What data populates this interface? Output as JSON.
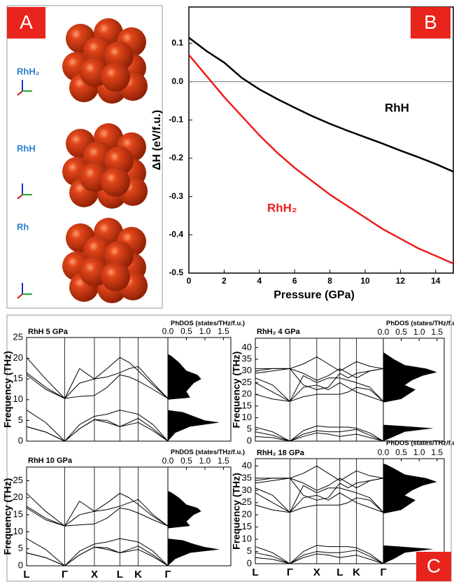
{
  "panel_labels": [
    "A",
    "B",
    "C"
  ],
  "panel_a": {
    "structures": [
      "RhH₂",
      "RhH",
      "Rh"
    ]
  },
  "chart_data": [
    {
      "type": "line",
      "xlabel": "Pressure (GPa)",
      "ylabel": "ΔH (eV/f.u.)",
      "xlim": [
        0,
        15
      ],
      "ylim": [
        -0.5,
        0.195
      ],
      "xticks": [
        0,
        2,
        4,
        6,
        8,
        10,
        12,
        14
      ],
      "yticks": [
        0.1,
        {
          "value": 0,
          "label": "0.0"
        },
        -0.1,
        -0.2,
        -0.3,
        -0.4,
        -0.5
      ],
      "zero_line": true,
      "x": [
        0,
        1,
        2,
        3,
        4,
        5,
        6,
        7,
        8,
        9,
        10,
        11,
        12,
        13,
        14,
        15
      ],
      "series": [
        {
          "name": "RhH",
          "color": "#000000",
          "values": [
            0.115,
            0.08,
            0.05,
            0.01,
            -0.02,
            -0.045,
            -0.068,
            -0.09,
            -0.11,
            -0.128,
            -0.145,
            -0.162,
            -0.18,
            -0.197,
            -0.215,
            -0.235
          ]
        },
        {
          "name": "RhH₂",
          "color": "#ee1c1c",
          "values": [
            0.07,
            0.015,
            -0.04,
            -0.09,
            -0.14,
            -0.185,
            -0.225,
            -0.26,
            -0.295,
            -0.325,
            -0.355,
            -0.385,
            -0.41,
            -0.435,
            -0.455,
            -0.475
          ]
        }
      ]
    },
    {
      "type": "phonon",
      "title": "RhH 5 GPa",
      "ylabel": "Frequency (THz)",
      "ylim": [
        0,
        25
      ],
      "yticks": [
        0,
        5,
        10,
        15,
        20,
        25
      ],
      "xlim": [
        0,
        1
      ],
      "symmetry_points": [
        0.27,
        0.48,
        0.66,
        0.79
      ],
      "x": [
        0,
        0.135,
        0.27,
        0.375,
        0.48,
        0.57,
        0.66,
        0.725,
        0.79,
        0.895,
        1.0
      ],
      "series": [
        {
          "values": [
            3.5,
            2.2,
            0,
            3,
            5.2,
            4.5,
            3.5,
            4,
            4.5,
            2.5,
            0
          ]
        },
        {
          "values": [
            3.5,
            2.2,
            0,
            3,
            5.2,
            5,
            3.5,
            4.5,
            5.5,
            3,
            0
          ]
        },
        {
          "values": [
            7.5,
            4.5,
            0,
            4,
            6,
            6.5,
            7.5,
            7,
            6.5,
            4,
            0
          ]
        },
        {
          "values": [
            16,
            12.5,
            10.3,
            10.8,
            11,
            13,
            16,
            15.5,
            14.5,
            12.5,
            10.3
          ]
        },
        {
          "values": [
            16.5,
            13,
            10.3,
            17.5,
            15,
            15.5,
            16.5,
            17.5,
            18,
            14,
            10.3
          ]
        },
        {
          "values": [
            20.2,
            15,
            10.3,
            14,
            15,
            17.5,
            20.2,
            19,
            17,
            13.5,
            10.3
          ]
        }
      ],
      "dos_title": "PhDOS (states/THz/f.u.)",
      "dos_xlim": [
        0,
        1.7
      ],
      "dos_xticks": [
        {
          "value": 0,
          "label": "0.0"
        },
        0.5,
        {
          "value": 1,
          "label": "1.0"
        },
        1.5
      ],
      "dos_y": [
        0,
        2,
        3.5,
        4.5,
        5,
        6,
        7,
        7.5,
        8,
        10,
        10.5,
        12,
        14,
        15,
        16,
        17,
        19,
        20.5,
        21
      ],
      "dos_values": [
        0,
        0.2,
        0.6,
        1.4,
        1.0,
        0.7,
        0.4,
        0,
        0,
        0,
        0.6,
        0.5,
        0.7,
        0.9,
        0.8,
        0.5,
        0.3,
        0.1,
        0
      ]
    },
    {
      "type": "phonon",
      "title": "RhH₂ 4 GPa",
      "ylabel": "Frequency (THz)",
      "ylim": [
        0,
        44
      ],
      "yticks": [
        0,
        5,
        10,
        15,
        20,
        25,
        30,
        35,
        40
      ],
      "xlim": [
        0,
        1
      ],
      "symmetry_points": [
        0.27,
        0.48,
        0.66,
        0.79
      ],
      "x": [
        0,
        0.135,
        0.27,
        0.375,
        0.48,
        0.57,
        0.66,
        0.725,
        0.79,
        0.895,
        1.0
      ],
      "series": [
        {
          "values": [
            2,
            1.5,
            0,
            2,
            3.5,
            3,
            2,
            2.5,
            3,
            1.5,
            0
          ]
        },
        {
          "values": [
            4,
            2.5,
            0,
            3,
            4.5,
            4,
            4,
            4.5,
            5,
            2.5,
            0
          ]
        },
        {
          "values": [
            6,
            4,
            0,
            4.5,
            6.5,
            6,
            6,
            6,
            5.5,
            3.5,
            0
          ]
        },
        {
          "values": [
            20,
            18,
            17,
            19,
            20,
            20,
            20,
            21,
            23,
            22,
            17
          ]
        },
        {
          "values": [
            25,
            21,
            17,
            23,
            24,
            22,
            25,
            23,
            21,
            19,
            17
          ]
        },
        {
          "values": [
            27,
            24,
            17,
            28,
            25,
            27,
            27,
            26,
            25,
            23,
            17
          ]
        },
        {
          "values": [
            30,
            31,
            31,
            33,
            36,
            33,
            30,
            32,
            34,
            32,
            31
          ]
        },
        {
          "values": [
            31,
            31,
            31,
            29,
            26,
            28,
            31,
            29,
            27,
            30,
            31
          ]
        },
        {
          "values": [
            29,
            30,
            31,
            24,
            22,
            23,
            29,
            27,
            29,
            30,
            31
          ]
        }
      ],
      "dos_title": "PhDOS (states/THz/f.u.)",
      "dos_xlim": [
        0,
        1.7
      ],
      "dos_xticks": [
        {
          "value": 0,
          "label": "0.0"
        },
        0.5,
        {
          "value": 1,
          "label": "1.0"
        },
        1.5
      ],
      "dos_y": [
        0,
        2,
        4,
        5.5,
        6.5,
        7,
        16.5,
        18,
        20,
        22,
        24,
        26,
        28,
        29.5,
        31,
        32.5,
        35,
        37,
        38
      ],
      "dos_values": [
        0,
        0.3,
        0.6,
        1.4,
        0.5,
        0,
        0,
        0.5,
        0.7,
        0.9,
        0.6,
        0.8,
        1.1,
        1.5,
        1.2,
        0.6,
        0.3,
        0.1,
        0
      ]
    },
    {
      "type": "phonon",
      "title": "RhH 10 GPa",
      "ylabel": "Frequency (THz)",
      "ylim": [
        0,
        29
      ],
      "yticks": [
        0,
        5,
        10,
        15,
        20,
        25
      ],
      "xlim": [
        0,
        1
      ],
      "xticks": [
        {
          "value": 0,
          "label": "L"
        },
        {
          "value": 0.27,
          "label": "Γ"
        },
        {
          "value": 0.48,
          "label": "X"
        },
        {
          "value": 0.66,
          "label": "L"
        },
        {
          "value": 0.79,
          "label": "K"
        },
        {
          "value": 1.0,
          "label": "Γ"
        }
      ],
      "x": [
        0,
        0.135,
        0.27,
        0.375,
        0.48,
        0.57,
        0.66,
        0.725,
        0.79,
        0.895,
        1.0
      ],
      "series": [
        {
          "values": [
            3.8,
            2.4,
            0,
            3.2,
            5.5,
            4.8,
            3.8,
            4.3,
            4.8,
            2.7,
            0
          ]
        },
        {
          "values": [
            3.8,
            2.4,
            0,
            3.2,
            5.5,
            5.3,
            3.8,
            4.8,
            5.8,
            3.2,
            0
          ]
        },
        {
          "values": [
            8,
            4.8,
            0,
            4.3,
            6.4,
            7,
            8,
            7.5,
            7,
            4.3,
            0
          ]
        },
        {
          "values": [
            17,
            13.5,
            11.7,
            12,
            12.3,
            14,
            17,
            16.5,
            15.5,
            13.5,
            11.7
          ]
        },
        {
          "values": [
            17.5,
            14,
            11.7,
            19,
            16,
            16.5,
            17.5,
            18.5,
            19.5,
            15,
            11.7
          ]
        },
        {
          "values": [
            21.3,
            16,
            11.7,
            15,
            16,
            18.5,
            21.3,
            20,
            18,
            14.5,
            11.7
          ]
        }
      ],
      "dos_title": "PhDOS (states/THz/f.u.)",
      "dos_xlim": [
        0,
        1.7
      ],
      "dos_xticks": [
        {
          "value": 0,
          "label": "0.0"
        },
        0.5,
        {
          "value": 1,
          "label": "1.0"
        },
        1.5
      ],
      "dos_y": [
        0,
        2,
        3.8,
        4.8,
        5.5,
        6.4,
        7.5,
        8,
        8.5,
        11,
        11.7,
        13,
        15,
        16,
        17,
        18,
        20,
        21.5,
        22
      ],
      "dos_values": [
        0,
        0.2,
        0.6,
        1.4,
        1.0,
        0.7,
        0.4,
        0,
        0,
        0,
        0.6,
        0.5,
        0.7,
        0.9,
        0.8,
        0.5,
        0.3,
        0.1,
        0
      ]
    },
    {
      "type": "phonon",
      "title": "RhH₂ 18 GPa",
      "ylabel": "Frequency (THz)",
      "ylim": [
        0,
        43
      ],
      "yticks": [
        0,
        5,
        10,
        15,
        20,
        25,
        30,
        35,
        40
      ],
      "xlim": [
        0,
        1
      ],
      "xticks": [
        {
          "value": 0,
          "label": "L"
        },
        {
          "value": 0.27,
          "label": "Γ"
        },
        {
          "value": 0.48,
          "label": "X"
        },
        {
          "value": 0.66,
          "label": "L"
        },
        {
          "value": 0.79,
          "label": "K"
        },
        {
          "value": 1.0,
          "label": "Γ"
        }
      ],
      "x": [
        0,
        0.135,
        0.27,
        0.375,
        0.48,
        0.57,
        0.66,
        0.725,
        0.79,
        0.895,
        1.0
      ],
      "series": [
        {
          "values": [
            2.5,
            1.8,
            0,
            2.5,
            4,
            3.5,
            2.5,
            3,
            3.5,
            1.8,
            0
          ]
        },
        {
          "values": [
            4.5,
            3,
            0,
            3.5,
            5,
            4.5,
            4.5,
            5,
            5.5,
            3,
            0
          ]
        },
        {
          "values": [
            7,
            4.5,
            0,
            5,
            7.5,
            7,
            7,
            7,
            6.5,
            4,
            0
          ]
        },
        {
          "values": [
            24,
            22,
            21,
            23,
            24,
            24,
            24,
            25,
            27,
            26,
            21
          ]
        },
        {
          "values": [
            29,
            25,
            21,
            27,
            28,
            26,
            29,
            27,
            25,
            23,
            21
          ]
        },
        {
          "values": [
            31,
            28,
            21,
            32,
            29,
            31,
            31,
            30,
            29,
            27,
            21
          ]
        },
        {
          "values": [
            34,
            35,
            35,
            37,
            40,
            37,
            34,
            36,
            38,
            36,
            35
          ]
        },
        {
          "values": [
            35,
            35,
            35,
            33,
            30,
            32,
            35,
            33,
            31,
            34,
            35
          ]
        },
        {
          "values": [
            33,
            34,
            35,
            28,
            26,
            27,
            33,
            31,
            33,
            34,
            35
          ]
        }
      ],
      "dos_title": "PhDOS (states/THz/f.u.)",
      "dos_xlim": [
        0,
        1.7
      ],
      "dos_xticks": [
        {
          "value": 0,
          "label": "0.0"
        },
        0.5,
        {
          "value": 1,
          "label": "1.0"
        },
        1.5
      ],
      "dos_y": [
        0,
        2,
        4.5,
        6,
        7,
        7.5,
        20.5,
        22,
        24,
        26,
        28,
        30,
        32,
        33.5,
        35,
        36.5,
        39,
        40.5,
        41
      ],
      "dos_values": [
        0,
        0.3,
        0.6,
        1.4,
        0.5,
        0,
        0,
        0.5,
        0.7,
        0.9,
        0.6,
        0.8,
        1.1,
        1.5,
        1.2,
        0.6,
        0.3,
        0.1,
        0
      ]
    }
  ]
}
